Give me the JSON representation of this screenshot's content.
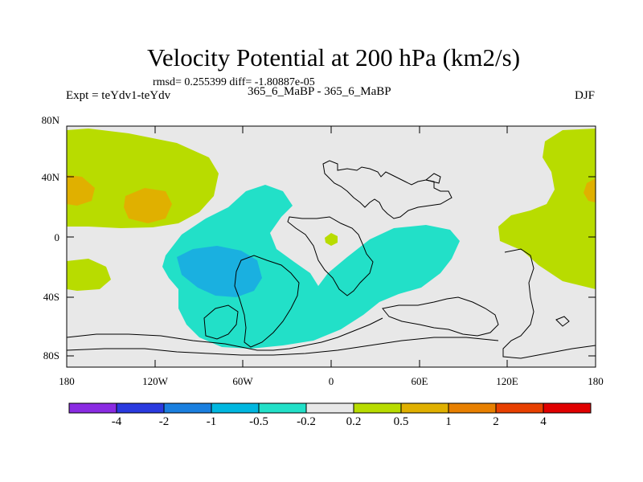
{
  "title": "Velocity Potential at 200 hPa (km2/s)",
  "stats": "rmsd= 0.255399 diff= -1.80887e-05",
  "expt_label": "Expt = teYdv1-teYdv",
  "period_label": "365_6_MaBP - 365_6_MaBP",
  "season_label": "DJF",
  "lat_labels": [
    "80N",
    "40N",
    "0",
    "40S",
    "80S"
  ],
  "lon_labels": [
    "180",
    "120W",
    "60W",
    "0",
    "60E",
    "120E",
    "180"
  ],
  "colorbar": {
    "labels": [
      "-4",
      "-2",
      "-1",
      "-0.5",
      "-0.2",
      "0.2",
      "0.5",
      "1",
      "2",
      "4"
    ],
    "colors": [
      "#8a2be2",
      "#2a3adf",
      "#1a7fdf",
      "#00b7e0",
      "#22e0c8",
      "#e8e8e8",
      "#b8dc00",
      "#e0b000",
      "#e88000",
      "#e84000",
      "#e00000"
    ]
  },
  "field_colors": {
    "background": "#e8e8e8",
    "neg_light": "#22e0c8",
    "neg_mid": "#1ab0e0",
    "pos_light": "#b8dc00",
    "pos_mid": "#e0b000"
  }
}
